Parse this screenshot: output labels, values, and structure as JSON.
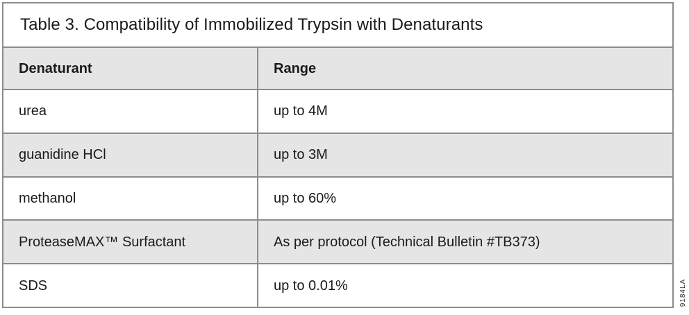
{
  "document": {
    "title": "Table 3. Compatibility of Immobilized Trypsin with Denaturants",
    "table": {
      "columns": [
        {
          "label": "Denaturant"
        },
        {
          "label": "Range"
        }
      ],
      "rows": [
        {
          "denaturant": "urea",
          "range": "up to 4M"
        },
        {
          "denaturant": "guanidine HCl",
          "range": "up to 3M"
        },
        {
          "denaturant": "methanol",
          "range": "up to 60%"
        },
        {
          "denaturant": "ProteaseMAX™ Surfactant",
          "range": "As per protocol (Technical Bulletin #TB373)"
        },
        {
          "denaturant": "SDS",
          "range": "up to 0.01%"
        }
      ]
    },
    "figure_number": "9184LA",
    "colors": {
      "background": "#ffffff",
      "row_shade": "#e5e5e5",
      "border": "#8c8c8c",
      "text": "#1a1a1a"
    }
  },
  "chart_data": {
    "type": "table",
    "title": "Table 3. Compatibility of Immobilized Trypsin with Denaturants",
    "columns": [
      "Denaturant",
      "Range"
    ],
    "rows": [
      [
        "urea",
        "up to 4M"
      ],
      [
        "guanidine HCl",
        "up to 3M"
      ],
      [
        "methanol",
        "up to 60%"
      ],
      [
        "ProteaseMAX™ Surfactant",
        "As per protocol (Technical Bulletin #TB373)"
      ],
      [
        "SDS",
        "up to 0.01%"
      ]
    ]
  }
}
